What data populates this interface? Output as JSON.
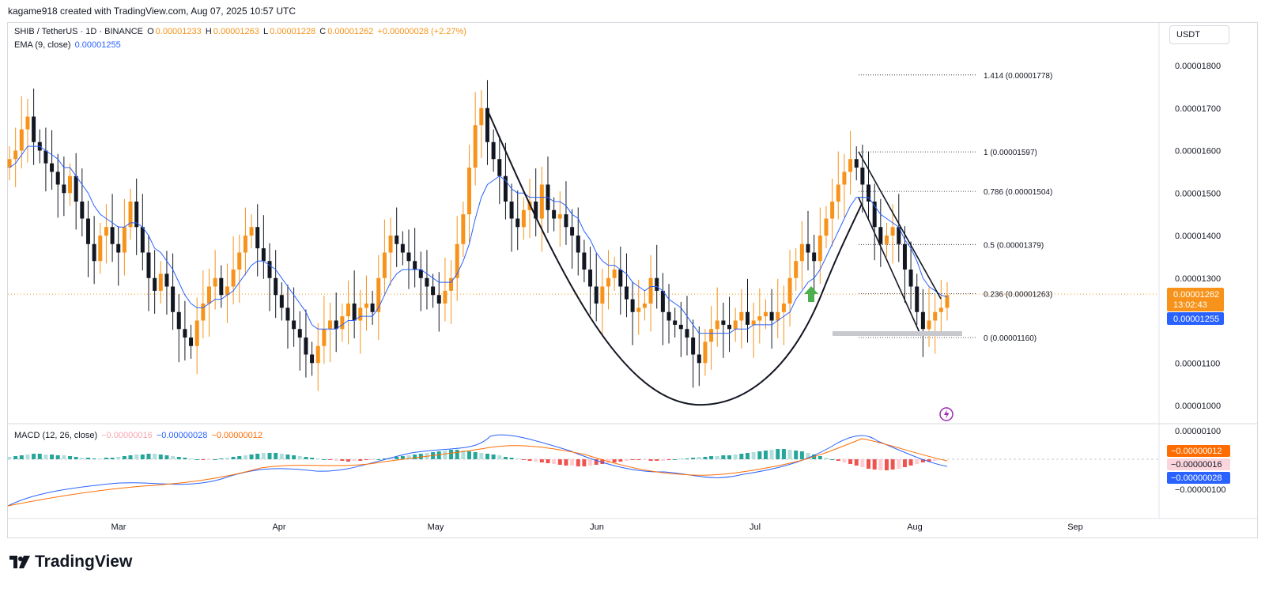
{
  "header": {
    "byline": "kagame918 created with TradingView.com, Aug 07, 2025 10:57 UTC"
  },
  "legend": {
    "symbol": "SHIB / TetherUS · 1D · BINANCE",
    "o_label": "O",
    "o": "0.00001233",
    "h_label": "H",
    "h": "0.00001263",
    "l_label": "L",
    "l": "0.00001228",
    "c_label": "C",
    "c": "0.00001262",
    "change": "+0.00000028 (+2.27%)",
    "ema_label": "EMA (9, close)",
    "ema": "0.00001255",
    "macd_label": "MACD (12, 26, close)",
    "macd_hist": "−0.00000016",
    "macd_line": "−0.00000028",
    "macd_signal": "−0.00000012"
  },
  "currency_button": "USDT",
  "brand": {
    "name": "TradingView"
  },
  "colors": {
    "up": "#f7931a",
    "down": "#131722",
    "ema": "#2962ff",
    "macd": "#2962ff",
    "signal": "#ff6d00",
    "hist_pos": "#26a69a",
    "hist_neg": "#ef5350"
  },
  "icons": {
    "alert": "lightning-icon",
    "arrow": "up-arrow-icon",
    "logo": "tradingview-logo"
  },
  "chart_data": {
    "type": "candlestick",
    "price_axis": {
      "ticks": [
        "0.00001800",
        "0.00001700",
        "0.00001600",
        "0.00001500",
        "0.00001400",
        "0.00001300",
        "0.00001100",
        "0.00001000"
      ],
      "tick_values": [
        1.8e-05,
        1.7e-05,
        1.6e-05,
        1.5e-05,
        1.4e-05,
        1.3e-05,
        1.1e-05,
        1e-05
      ],
      "range": [
        9.6e-06,
        1.88e-05
      ]
    },
    "price_labels": {
      "last": "0.00001262",
      "countdown": "13:02:43",
      "ema": "0.00001255"
    },
    "time_axis": [
      "Mar",
      "Apr",
      "May",
      "Jun",
      "Jul",
      "Aug",
      "Sep"
    ],
    "fibonacci": [
      {
        "level": "1.414",
        "value": 1.778e-05,
        "label": "1.414 (0.00001778)"
      },
      {
        "level": "1",
        "value": 1.597e-05,
        "label": "1 (0.00001597)"
      },
      {
        "level": "0.786",
        "value": 1.504e-05,
        "label": "0.786 (0.00001504)"
      },
      {
        "level": "0.5",
        "value": 1.379e-05,
        "label": "0.5 (0.00001379)"
      },
      {
        "level": "0.236",
        "value": 1.263e-05,
        "label": "0.236 (0.00001263)"
      },
      {
        "level": "0",
        "value": 1.16e-05,
        "label": "0 (0.00001160)"
      }
    ],
    "close_series": [
      1.58,
      1.6,
      1.65,
      1.68,
      1.62,
      1.6,
      1.57,
      1.55,
      1.52,
      1.5,
      1.54,
      1.48,
      1.44,
      1.38,
      1.34,
      1.4,
      1.42,
      1.38,
      1.36,
      1.42,
      1.48,
      1.42,
      1.36,
      1.3,
      1.27,
      1.31,
      1.28,
      1.22,
      1.18,
      1.16,
      1.14,
      1.2,
      1.24,
      1.28,
      1.3,
      1.26,
      1.28,
      1.32,
      1.36,
      1.4,
      1.42,
      1.37,
      1.34,
      1.3,
      1.26,
      1.23,
      1.2,
      1.18,
      1.16,
      1.12,
      1.1,
      1.14,
      1.18,
      1.2,
      1.18,
      1.21,
      1.24,
      1.2,
      1.23,
      1.24,
      1.22,
      1.3,
      1.36,
      1.4,
      1.38,
      1.36,
      1.34,
      1.32,
      1.3,
      1.28,
      1.26,
      1.24,
      1.27,
      1.3,
      1.38,
      1.45,
      1.56,
      1.66,
      1.7,
      1.62,
      1.58,
      1.54,
      1.48,
      1.44,
      1.42,
      1.46,
      1.48,
      1.44,
      1.52,
      1.46,
      1.44,
      1.45,
      1.42,
      1.4,
      1.36,
      1.32,
      1.28,
      1.24,
      1.28,
      1.3,
      1.32,
      1.28,
      1.25,
      1.22,
      1.23,
      1.24,
      1.3,
      1.27,
      1.22,
      1.2,
      1.19,
      1.18,
      1.16,
      1.12,
      1.1,
      1.15,
      1.18,
      1.2,
      1.19,
      1.18,
      1.2,
      1.22,
      1.19,
      1.2,
      1.21,
      1.22,
      1.2,
      1.22,
      1.24,
      1.3,
      1.34,
      1.38,
      1.36,
      1.34,
      1.4,
      1.44,
      1.48,
      1.52,
      1.55,
      1.58,
      1.56,
      1.52,
      1.48,
      1.42,
      1.38,
      1.4,
      1.42,
      1.38,
      1.32,
      1.28,
      1.22,
      1.18,
      1.2,
      1.22,
      1.23,
      1.26
    ],
    "ema_series": [
      1.56,
      1.57,
      1.59,
      1.61,
      1.61,
      1.61,
      1.6,
      1.59,
      1.58,
      1.56,
      1.56,
      1.54,
      1.52,
      1.5,
      1.47,
      1.45,
      1.44,
      1.43,
      1.42,
      1.42,
      1.43,
      1.43,
      1.42,
      1.4,
      1.37,
      1.36,
      1.34,
      1.32,
      1.29,
      1.26,
      1.24,
      1.23,
      1.23,
      1.24,
      1.25,
      1.25,
      1.26,
      1.27,
      1.29,
      1.31,
      1.33,
      1.34,
      1.34,
      1.33,
      1.32,
      1.3,
      1.28,
      1.26,
      1.24,
      1.22,
      1.19,
      1.18,
      1.18,
      1.18,
      1.18,
      1.19,
      1.2,
      1.2,
      1.21,
      1.21,
      1.21,
      1.23,
      1.26,
      1.29,
      1.31,
      1.32,
      1.32,
      1.32,
      1.32,
      1.31,
      1.3,
      1.29,
      1.29,
      1.29,
      1.31,
      1.34,
      1.38,
      1.44,
      1.49,
      1.52,
      1.53,
      1.54,
      1.53,
      1.51,
      1.5,
      1.5,
      1.49,
      1.49,
      1.49,
      1.49,
      1.48,
      1.48,
      1.47,
      1.45,
      1.44,
      1.41,
      1.39,
      1.36,
      1.34,
      1.33,
      1.33,
      1.32,
      1.31,
      1.29,
      1.28,
      1.27,
      1.28,
      1.28,
      1.27,
      1.25,
      1.24,
      1.23,
      1.21,
      1.19,
      1.17,
      1.17,
      1.17,
      1.17,
      1.17,
      1.17,
      1.18,
      1.18,
      1.18,
      1.19,
      1.19,
      1.19,
      1.19,
      1.2,
      1.21,
      1.22,
      1.25,
      1.27,
      1.29,
      1.3,
      1.32,
      1.35,
      1.38,
      1.41,
      1.44,
      1.47,
      1.49,
      1.49,
      1.49,
      1.47,
      1.45,
      1.44,
      1.43,
      1.42,
      1.39,
      1.37,
      1.34,
      1.3,
      1.28,
      1.27,
      1.26,
      1.255
    ]
  }
}
